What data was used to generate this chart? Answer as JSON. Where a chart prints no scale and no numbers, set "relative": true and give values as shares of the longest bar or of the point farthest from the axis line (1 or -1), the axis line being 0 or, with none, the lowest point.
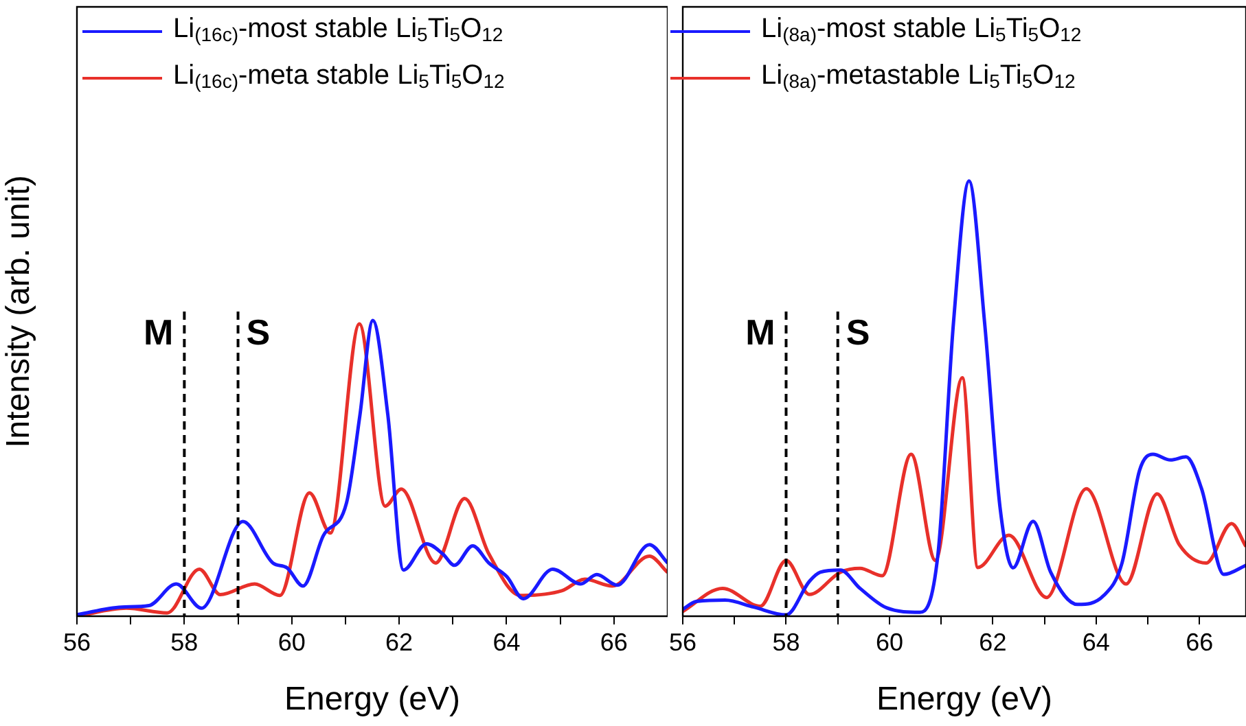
{
  "chart_data": [
    {
      "type": "line",
      "relative": true,
      "ylabel": "Intensity (arb. unit)",
      "xlabel": "Energy (eV)",
      "xlim": [
        56,
        67
      ],
      "xticks": [
        56,
        {
          "value": 57,
          "label": null
        },
        58,
        {
          "value": 59,
          "label": null
        },
        60,
        {
          "value": 61,
          "label": null
        },
        62,
        {
          "value": 63,
          "label": null
        },
        64,
        {
          "value": 65,
          "label": null
        },
        66
      ],
      "tick_labels": "x",
      "grid": false,
      "legend": "top left",
      "marker": "none",
      "line_style": "solid",
      "ref_lines": [
        {
          "axis": "x",
          "value": 58,
          "label": "M",
          "line_style": "dashed",
          "color": "#000000"
        },
        {
          "axis": "x",
          "value": 59,
          "label": "S",
          "line_style": "dashed",
          "color": "#000000"
        }
      ],
      "series": [
        {
          "name": "Li$_{(16c)}$-most stable Li$_{5}$Ti$_{5}$O$_{12}$",
          "color": "#1a1aff",
          "x": [
            56,
            56.83,
            57.34,
            57.85,
            58.32,
            59.09,
            59.65,
            59.91,
            60.21,
            60.59,
            61.02,
            61.27,
            61.51,
            61.79,
            62.08,
            62.51,
            62.81,
            63.03,
            63.37,
            63.67,
            64.01,
            64.31,
            64.86,
            65.38,
            65.68,
            66.06,
            66.66,
            67
          ],
          "values": [
            0.005,
            0.031,
            0.036,
            0.109,
            0.027,
            0.32,
            0.18,
            0.164,
            0.102,
            0.273,
            0.383,
            0.68,
            1,
            0.68,
            0.156,
            0.245,
            0.211,
            0.172,
            0.238,
            0.18,
            0.133,
            0.059,
            0.159,
            0.109,
            0.141,
            0.105,
            0.242,
            0.18
          ]
        },
        {
          "name": "Li$_{(16c)}$-meta stable Li$_{5}$Ti$_{5}$O$_{12}$",
          "color": "#e8302a",
          "x": [
            56,
            56.92,
            57.68,
            58.28,
            58.67,
            59.31,
            59.78,
            60.33,
            60.72,
            61.26,
            61.74,
            62.04,
            62.68,
            63.22,
            63.67,
            64.26,
            65.03,
            65.46,
            65.97,
            66.66,
            67
          ],
          "values": [
            0,
            0.027,
            0.011,
            0.159,
            0.073,
            0.109,
            0.07,
            0.417,
            0.281,
            0.988,
            0.372,
            0.43,
            0.18,
            0.398,
            0.211,
            0.07,
            0.086,
            0.125,
            0.102,
            0.203,
            0.148
          ]
        }
      ]
    },
    {
      "type": "line",
      "relative": true,
      "xlabel": "Energy (eV)",
      "xlim": [
        56,
        66.9
      ],
      "xticks": [
        56,
        {
          "value": 57,
          "label": null
        },
        58,
        {
          "value": 59,
          "label": null
        },
        60,
        {
          "value": 61,
          "label": null
        },
        62,
        {
          "value": 63,
          "label": null
        },
        64,
        {
          "value": 65,
          "label": null
        },
        66
      ],
      "tick_labels": "x",
      "grid": false,
      "legend": "top left",
      "marker": "none",
      "line_style": "solid",
      "ref_lines": [
        {
          "axis": "x",
          "value": 58,
          "label": "M",
          "line_style": "dashed",
          "color": "#000000"
        },
        {
          "axis": "x",
          "value": 59,
          "label": "S",
          "line_style": "dashed",
          "color": "#000000"
        }
      ],
      "series": [
        {
          "name": "Li$_{(8a)}$-most stable Li$_{5}$Ti$_{5}$O$_{12}$",
          "color": "#1a1aff",
          "x": [
            56,
            56.26,
            56.82,
            57.37,
            58,
            58.45,
            58.66,
            59.05,
            59.43,
            59.95,
            60.59,
            60.94,
            61.24,
            61.54,
            61.84,
            62.14,
            62.39,
            62.78,
            63.12,
            63.64,
            64.15,
            64.5,
            64.84,
            65.1,
            65.44,
            65.74,
            66.04,
            66.47,
            66.9
          ],
          "values": [
            0.016,
            0.034,
            0.037,
            0.021,
            0.003,
            0.08,
            0.101,
            0.106,
            0.064,
            0.019,
            0.009,
            0.144,
            0.676,
            1,
            0.676,
            0.25,
            0.111,
            0.218,
            0.101,
            0.027,
            0.048,
            0.122,
            0.335,
            0.372,
            0.359,
            0.366,
            0.293,
            0.096,
            0.117
          ]
        },
        {
          "name": "Li$_{(8a)}$-metastable Li$_{5}$Ti$_{5}$O$_{12}$",
          "color": "#e8302a",
          "x": [
            56,
            56.77,
            57.5,
            58,
            58.45,
            59.05,
            59.43,
            59.86,
            60.42,
            60.89,
            61.41,
            61.71,
            62.31,
            63.04,
            63.81,
            64.58,
            65.18,
            65.61,
            66.13,
            66.62,
            66.9
          ],
          "values": [
            0.011,
            0.064,
            0.023,
            0.128,
            0.05,
            0.101,
            0.11,
            0.093,
            0.372,
            0.128,
            0.548,
            0.112,
            0.186,
            0.043,
            0.293,
            0.074,
            0.281,
            0.164,
            0.122,
            0.213,
            0.16
          ]
        }
      ]
    }
  ]
}
